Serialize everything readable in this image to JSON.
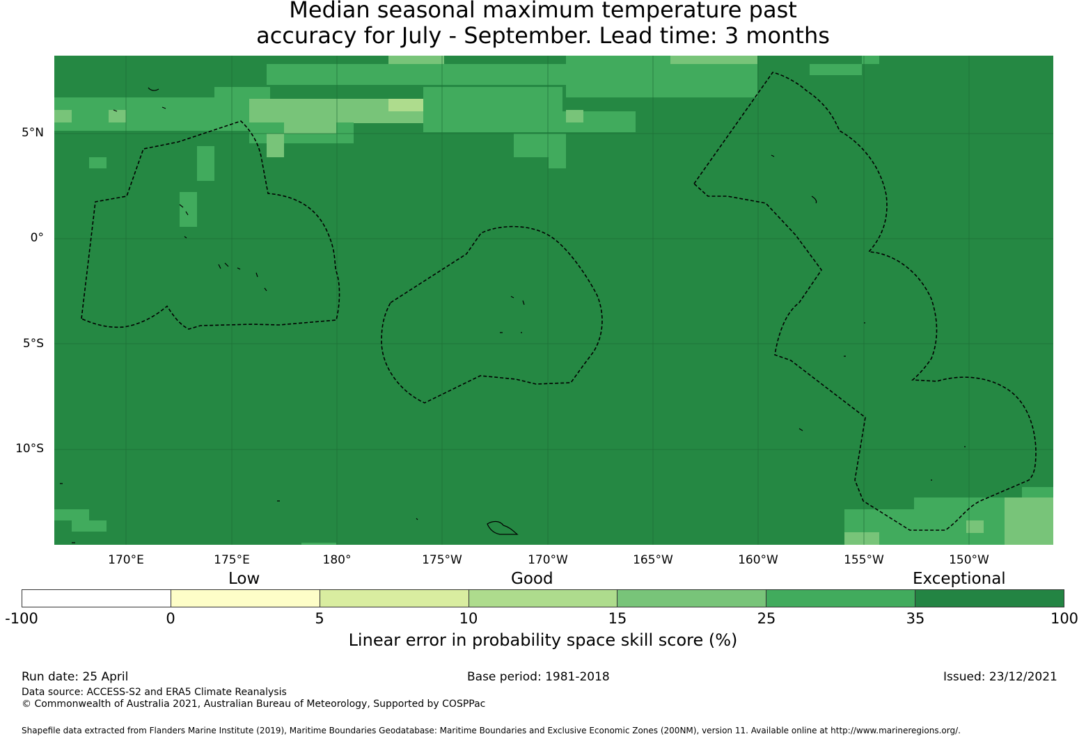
{
  "title_line1": "Median seasonal maximum temperature past",
  "title_line2": "accuracy for July - September. Lead time: 3 months",
  "map": {
    "latitude_labels": [
      "5°N",
      "0°",
      "5°S",
      "10°S"
    ],
    "longitude_labels": [
      "170°E",
      "175°E",
      "180°",
      "175°W",
      "170°W",
      "165°W",
      "160°W",
      "155°W",
      "150°W"
    ],
    "background_color": "#258843",
    "boundary_style": "dashed black lines (maritime EEZ boundaries)"
  },
  "legend": {
    "categories": [
      "Low",
      "Good",
      "Exceptional"
    ],
    "ticks": [
      "-100",
      "0",
      "5",
      "10",
      "15",
      "25",
      "35",
      "100"
    ],
    "colors": [
      "#ffffff",
      "#fefec8",
      "#d9eda0",
      "#aedc8d",
      "#78c479",
      "#41ab5d",
      "#238443"
    ],
    "title": "Linear error in probability space skill score (%)"
  },
  "footer": {
    "run_date": "Run date: 25 April",
    "base_period": "Base period: 1981-2018",
    "issued": "Issued: 23/12/2021",
    "data_source": "Data source: ACCESS-S2 and ERA5 Climate Reanalysis",
    "copyright": "© Commonwealth of Australia 2021, Australian Bureau of Meteorology, Supported by COSPPac",
    "shapefile": "Shapefile data extracted from Flanders Marine Institute (2019), Maritime Boundaries Geodatabase: Maritime Boundaries and Exclusive Economic Zones (200NM), version 11. Available online at http://www.marineregions.org/."
  }
}
